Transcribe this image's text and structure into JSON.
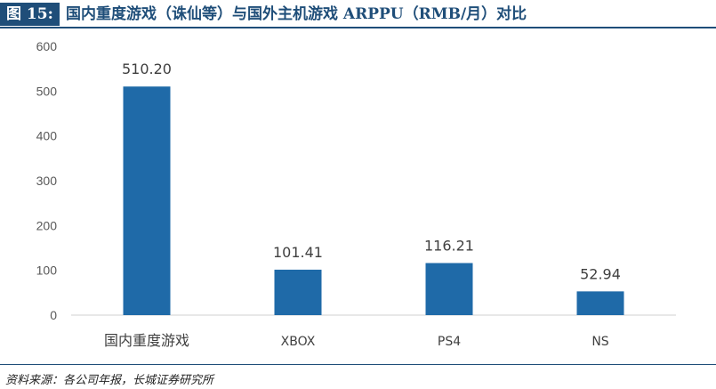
{
  "figure": {
    "label": "图 15:",
    "title": "国内重度游戏（诛仙等）与国外主机游戏 ARPPU（RMB/月）对比",
    "source": "资料来源：各公司年报，长城证券研究所"
  },
  "colors": {
    "bar": "#1f6aa8",
    "header_bg": "#1f4e79",
    "axis": "#d0d0d0"
  },
  "chart_data": {
    "type": "bar",
    "title": "",
    "xlabel": "",
    "ylabel": "",
    "categories": [
      "国内重度游戏",
      "XBOX",
      "PS4",
      "NS"
    ],
    "values": [
      510.2,
      101.41,
      116.21,
      52.94
    ],
    "value_labels": [
      "510.20",
      "101.41",
      "116.21",
      "52.94"
    ],
    "ylim": [
      0,
      600
    ],
    "yticks": [
      0,
      100,
      200,
      300,
      400,
      500,
      600
    ],
    "grid": false,
    "legend": "none"
  }
}
